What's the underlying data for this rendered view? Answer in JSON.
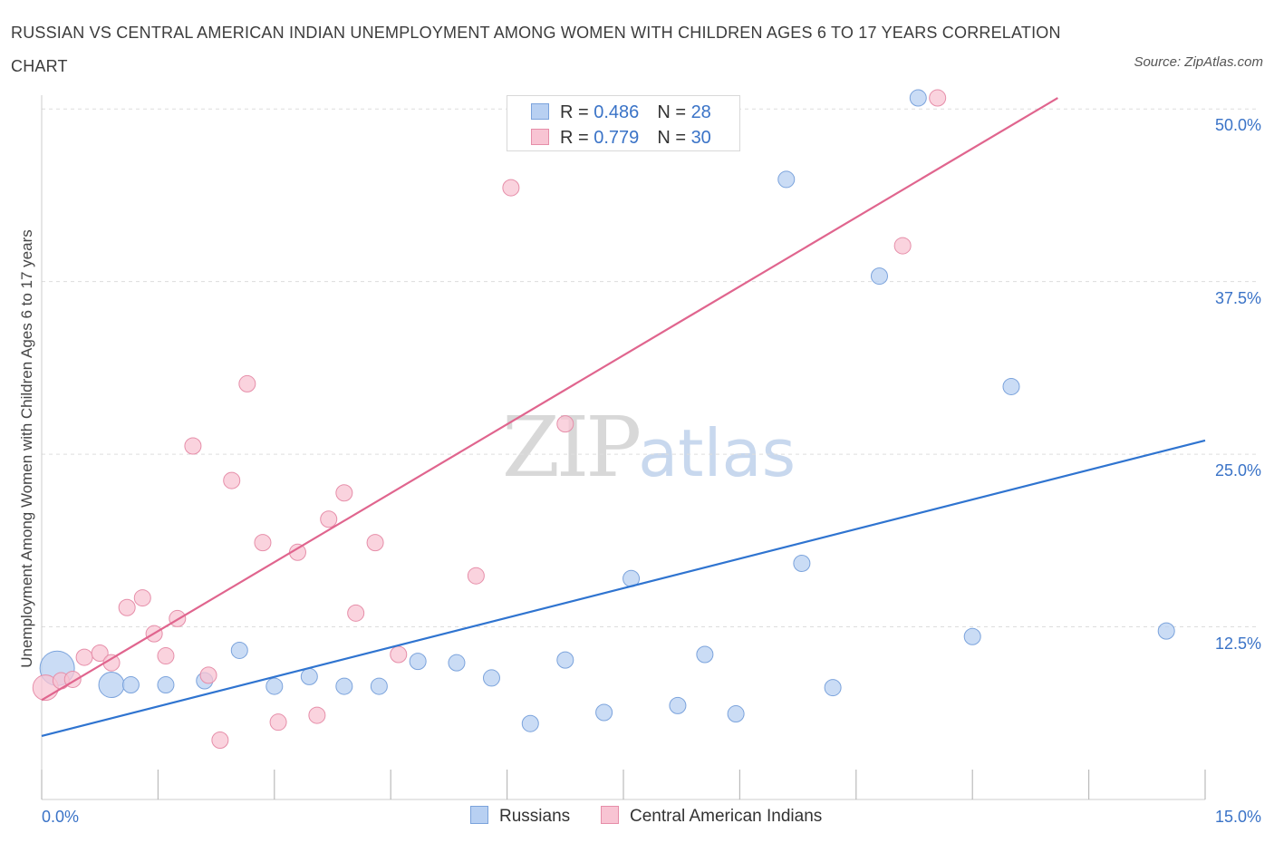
{
  "title": "RUSSIAN VS CENTRAL AMERICAN INDIAN UNEMPLOYMENT AMONG WOMEN WITH CHILDREN AGES 6 TO 17 YEARS CORRELATION CHART",
  "source": "Source: ZipAtlas.com",
  "watermark": {
    "zip": "ZIP",
    "atlas": "atlas"
  },
  "legend": {
    "rows": [
      {
        "r_label": "R = ",
        "r_value": "0.486",
        "n_label": "N = ",
        "n_value": "28"
      },
      {
        "r_label": "R = ",
        "r_value": "0.779",
        "n_label": "N = ",
        "n_value": "30"
      }
    ]
  },
  "bottom_legend": [
    "Russians",
    "Central American Indians"
  ],
  "colors": {
    "blue_fill": "#b8d0f2",
    "blue_stroke": "#7ba3dc",
    "blue_line": "#2f74d0",
    "pink_fill": "#f8c4d3",
    "pink_stroke": "#e68ea9",
    "pink_line": "#e0658e",
    "tick_text": "#3a73c7",
    "grid": "#dddddd"
  },
  "chart_data": {
    "type": "scatter",
    "title": "RUSSIAN VS CENTRAL AMERICAN INDIAN UNEMPLOYMENT AMONG WOMEN WITH CHILDREN AGES 6 TO 17 YEARS CORRELATION CHART",
    "xlabel": "",
    "ylabel": "Unemployment Among Women with Children Ages 6 to 17 years",
    "xlim": [
      0,
      15
    ],
    "ylim": [
      0,
      51
    ],
    "x_tick_labels": [
      "0.0%",
      "15.0%"
    ],
    "y_ticks": [
      12.5,
      25.0,
      37.5,
      50.0
    ],
    "y_tick_labels": [
      "12.5%",
      "25.0%",
      "37.5%",
      "50.0%"
    ],
    "grid": true,
    "series": [
      {
        "name": "Russians",
        "r": 0.486,
        "n": 28,
        "trend": [
          [
            0.0,
            4.6
          ],
          [
            15.0,
            26.0
          ]
        ],
        "points": [
          {
            "x": 0.2,
            "y": 9.5,
            "big": 2
          },
          {
            "x": 0.9,
            "y": 8.3,
            "big": 1
          },
          {
            "x": 1.15,
            "y": 8.3
          },
          {
            "x": 1.6,
            "y": 8.3
          },
          {
            "x": 2.1,
            "y": 8.6
          },
          {
            "x": 2.55,
            "y": 10.8
          },
          {
            "x": 3.0,
            "y": 8.2
          },
          {
            "x": 3.45,
            "y": 8.9
          },
          {
            "x": 3.9,
            "y": 8.2
          },
          {
            "x": 4.35,
            "y": 8.2
          },
          {
            "x": 4.85,
            "y": 10.0
          },
          {
            "x": 5.35,
            "y": 9.9
          },
          {
            "x": 5.8,
            "y": 8.8
          },
          {
            "x": 6.3,
            "y": 5.5
          },
          {
            "x": 6.75,
            "y": 10.1
          },
          {
            "x": 7.25,
            "y": 6.3
          },
          {
            "x": 7.6,
            "y": 16.0
          },
          {
            "x": 8.2,
            "y": 6.8
          },
          {
            "x": 8.55,
            "y": 10.5
          },
          {
            "x": 8.95,
            "y": 6.2
          },
          {
            "x": 9.6,
            "y": 44.9
          },
          {
            "x": 9.8,
            "y": 17.1
          },
          {
            "x": 10.2,
            "y": 8.1
          },
          {
            "x": 10.8,
            "y": 37.9
          },
          {
            "x": 11.3,
            "y": 50.8
          },
          {
            "x": 12.0,
            "y": 11.8
          },
          {
            "x": 12.5,
            "y": 29.9
          },
          {
            "x": 14.5,
            "y": 12.2
          }
        ]
      },
      {
        "name": "Central American Indians",
        "r": 0.779,
        "n": 30,
        "trend": [
          [
            0.0,
            7.2
          ],
          [
            13.1,
            50.8
          ]
        ],
        "points": [
          {
            "x": 0.05,
            "y": 8.1,
            "big": 1
          },
          {
            "x": 0.25,
            "y": 8.6
          },
          {
            "x": 0.4,
            "y": 8.7
          },
          {
            "x": 0.55,
            "y": 10.3
          },
          {
            "x": 0.75,
            "y": 10.6
          },
          {
            "x": 0.9,
            "y": 9.9
          },
          {
            "x": 1.1,
            "y": 13.9
          },
          {
            "x": 1.3,
            "y": 14.6
          },
          {
            "x": 1.45,
            "y": 12.0
          },
          {
            "x": 1.6,
            "y": 10.4
          },
          {
            "x": 1.75,
            "y": 13.1
          },
          {
            "x": 1.95,
            "y": 25.6
          },
          {
            "x": 2.15,
            "y": 9.0
          },
          {
            "x": 2.3,
            "y": 4.3
          },
          {
            "x": 2.45,
            "y": 23.1
          },
          {
            "x": 2.65,
            "y": 30.1
          },
          {
            "x": 2.85,
            "y": 18.6
          },
          {
            "x": 3.05,
            "y": 5.6
          },
          {
            "x": 3.3,
            "y": 17.9
          },
          {
            "x": 3.55,
            "y": 6.1
          },
          {
            "x": 3.7,
            "y": 20.3
          },
          {
            "x": 3.9,
            "y": 22.2
          },
          {
            "x": 4.05,
            "y": 13.5
          },
          {
            "x": 4.3,
            "y": 18.6
          },
          {
            "x": 4.6,
            "y": 10.5
          },
          {
            "x": 5.6,
            "y": 16.2
          },
          {
            "x": 6.05,
            "y": 44.3
          },
          {
            "x": 6.75,
            "y": 27.2
          },
          {
            "x": 11.1,
            "y": 40.1
          },
          {
            "x": 11.55,
            "y": 50.8
          }
        ]
      }
    ]
  }
}
